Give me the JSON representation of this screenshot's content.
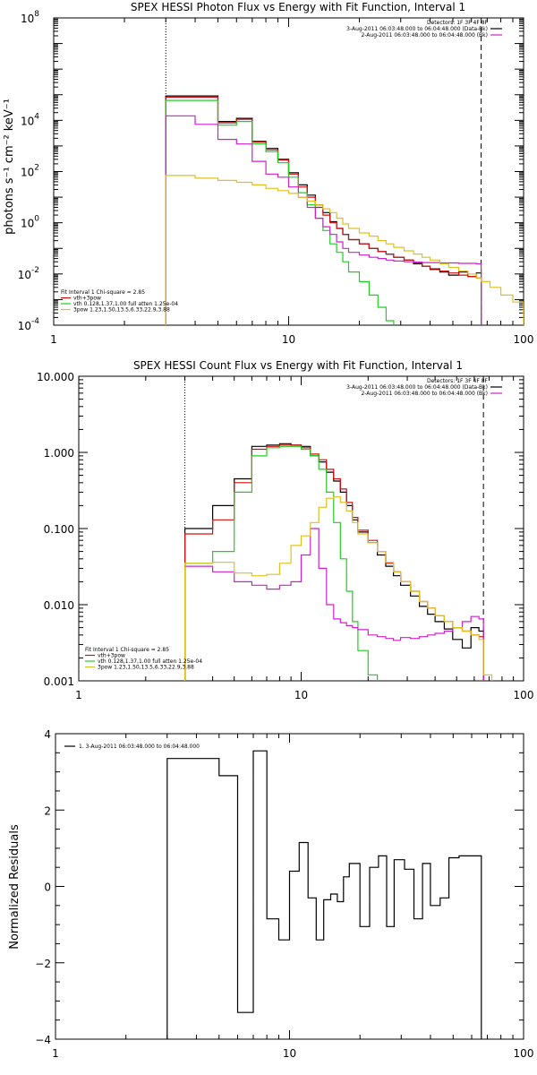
{
  "chart_data": [
    {
      "type": "line",
      "title": "SPEX HESSI Photon Flux vs Energy with Fit Function, Interval 1",
      "ylabel": "photons s⁻¹ cm⁻² keV⁻¹",
      "xlabel": "",
      "xscale": "log",
      "yscale": "log",
      "xlim": [
        1,
        100
      ],
      "ylim": [
        0.0001,
        100000000
      ],
      "xticks": [
        {
          "v": 1,
          "label": "1"
        },
        {
          "v": 10,
          "label": "10"
        },
        {
          "v": 100,
          "label": "100"
        }
      ],
      "yticks": [
        {
          "v": 0.0001,
          "label": "10",
          "exp": "-4"
        },
        {
          "v": 0.01,
          "label": "10",
          "exp": "-2"
        },
        {
          "v": 1,
          "label": "10",
          "exp": "0"
        },
        {
          "v": 100,
          "label": "10",
          "exp": "2"
        },
        {
          "v": 10000,
          "label": "10",
          "exp": "4"
        },
        {
          "v": 100000000,
          "label": "10",
          "exp": "8"
        }
      ],
      "vlines": [
        {
          "x": 3,
          "style": "dotted"
        },
        {
          "x": 66,
          "style": "dashed"
        }
      ],
      "legend_top_right": [
        {
          "text": "Detectors: 1F 3F 4F 8F",
          "color": ""
        },
        {
          "text": "3-Aug-2011 06:03:48.000 to 06:04:48.000 (Data-Bk)",
          "color": "#000000"
        },
        {
          "text": "2-Aug-2011 06:03:48.000 to 06:04:48.000 (Bk)",
          "color": "#cc22cc"
        }
      ],
      "legend_bottom_left": [
        {
          "text": "Fit Interval 1   Chi-square = 2.85",
          "color": ""
        },
        {
          "text": "vth+3pow",
          "color": "#d01010"
        },
        {
          "text": "vth 0.128,1.37,1.00  full atten 1.25e-04",
          "color": "#22cc22"
        },
        {
          "text": "3pow 1.23,1.50,13.5,6.33,22.9,3.88",
          "color": "#e0c020"
        }
      ],
      "series": [
        {
          "color": "#000000",
          "edges": [
            3,
            4,
            5,
            6,
            7,
            8,
            9,
            10,
            11,
            12,
            13,
            14,
            15,
            16,
            17,
            18,
            20,
            22,
            24,
            26,
            28,
            31,
            34,
            37,
            40,
            44,
            48,
            53,
            58,
            63,
            66
          ],
          "values": [
            90000,
            90000,
            9000,
            12000,
            1500,
            800,
            300,
            90,
            30,
            12,
            5,
            2.5,
            1.1,
            0.6,
            0.35,
            0.22,
            0.15,
            0.1,
            0.075,
            0.06,
            0.045,
            0.035,
            0.025,
            0.02,
            0.015,
            0.012,
            0.009,
            0.012,
            0.008,
            0.011
          ]
        },
        {
          "color": "#d01010",
          "edges": [
            3,
            4,
            5,
            6,
            7,
            8,
            9,
            10,
            11,
            12,
            13,
            14,
            15,
            16,
            17,
            18,
            20,
            22,
            24,
            26,
            28,
            31,
            34,
            37,
            40,
            44,
            48,
            53,
            58,
            63,
            66
          ],
          "values": [
            80000,
            80000,
            8000,
            11000,
            1400,
            700,
            280,
            80,
            25,
            10,
            4,
            2,
            1,
            0.6,
            0.35,
            0.22,
            0.15,
            0.1,
            0.075,
            0.06,
            0.045,
            0.035,
            0.027,
            0.02,
            0.016,
            0.013,
            0.011,
            0.009,
            0.008,
            0.007
          ]
        },
        {
          "color": "#22cc22",
          "edges": [
            3,
            4,
            5,
            6,
            7,
            8,
            9,
            10,
            11,
            12,
            13,
            14,
            15,
            16,
            17,
            18,
            20,
            22,
            24,
            26,
            28
          ],
          "values": [
            60000,
            60000,
            6500,
            9000,
            1200,
            600,
            220,
            60,
            15,
            5,
            1.5,
            0.5,
            0.15,
            0.07,
            0.03,
            0.012,
            0.005,
            0.0015,
            0.0005,
            0.00015
          ]
        },
        {
          "color": "#cc22cc",
          "edges": [
            3,
            4,
            5,
            6,
            7,
            8,
            9,
            10,
            11,
            12,
            13,
            14,
            15,
            16,
            17,
            18,
            20,
            22,
            24,
            26,
            28,
            31,
            34,
            37,
            40,
            44,
            48,
            53,
            58,
            63,
            66
          ],
          "values": [
            15000,
            7000,
            1800,
            1200,
            250,
            80,
            60,
            25,
            10,
            4,
            1.5,
            0.7,
            0.35,
            0.18,
            0.1,
            0.07,
            0.055,
            0.045,
            0.04,
            0.035,
            0.032,
            0.03,
            0.029,
            0.028,
            0.028,
            0.027,
            0.027,
            0.026,
            0.026,
            0.025
          ]
        },
        {
          "color": "#e0c020",
          "edges": [
            3,
            4,
            5,
            6,
            7,
            8,
            9,
            10,
            11,
            12,
            13,
            14,
            15,
            16,
            17,
            18,
            20,
            22,
            24,
            26,
            28,
            31,
            34,
            37,
            40,
            44,
            48,
            53,
            58,
            63,
            66,
            72,
            80,
            90,
            100
          ],
          "values": [
            70,
            55,
            45,
            38,
            30,
            22,
            18,
            14,
            10,
            7,
            5,
            3.5,
            2.5,
            1.5,
            0.9,
            0.6,
            0.4,
            0.3,
            0.2,
            0.15,
            0.11,
            0.08,
            0.06,
            0.045,
            0.035,
            0.025,
            0.018,
            0.013,
            0.01,
            0.007,
            0.005,
            0.003,
            0.0015,
            0.0008
          ]
        }
      ]
    },
    {
      "type": "line",
      "title": "SPEX HESSI Count Flux vs Energy with Fit Function, Interval 1",
      "ylabel": "",
      "xlabel": "",
      "xscale": "log",
      "yscale": "log",
      "xlim": [
        1,
        100
      ],
      "ylim": [
        0.001,
        10
      ],
      "xticks": [
        {
          "v": 1,
          "label": "1"
        },
        {
          "v": 10,
          "label": "10"
        },
        {
          "v": 100,
          "label": "100"
        }
      ],
      "yticks": [
        {
          "v": 0.001,
          "label": "0.001"
        },
        {
          "v": 0.01,
          "label": "0.010"
        },
        {
          "v": 0.1,
          "label": "0.100"
        },
        {
          "v": 1,
          "label": "1.000"
        },
        {
          "v": 10,
          "label": "10.000"
        }
      ],
      "vlines": [
        {
          "x": 3,
          "style": "dotted"
        },
        {
          "x": 66,
          "style": "dashed"
        }
      ],
      "legend_top_right": [
        {
          "text": "Detectors: 1F 3F 4F 8F",
          "color": ""
        },
        {
          "text": "3-Aug-2011 06:03:48.000 to 06:04:48.000 (Data-Bk)",
          "color": "#000000"
        },
        {
          "text": "2-Aug-2011 06:03:48.000 to 06:04:48.000 (Bk)",
          "color": "#cc22cc"
        }
      ],
      "legend_bottom_left": [
        {
          "text": "Fit Interval 1   Chi-square = 2.85",
          "color": ""
        },
        {
          "text": "vth+3pow",
          "color": "#d01010"
        },
        {
          "text": "vth 0.128,1.37,1.00  full atten 1.25e-04",
          "color": "#22cc22"
        },
        {
          "text": "3pow 1.23,1.50,13.5,6.33,22.9,3.88",
          "color": "#e0c020"
        }
      ],
      "series": [
        {
          "color": "#000000",
          "edges": [
            3,
            4,
            5,
            6,
            7,
            8,
            9,
            10,
            11,
            12,
            13,
            14,
            15,
            16,
            17,
            18,
            20,
            22,
            24,
            26,
            28,
            31,
            34,
            37,
            40,
            44,
            48,
            53,
            58,
            63,
            66
          ],
          "values": [
            0.1,
            0.2,
            0.45,
            1.2,
            1.25,
            1.3,
            1.25,
            1.2,
            0.9,
            0.75,
            0.55,
            0.42,
            0.3,
            0.2,
            0.13,
            0.09,
            0.065,
            0.045,
            0.032,
            0.024,
            0.018,
            0.013,
            0.0095,
            0.0075,
            0.006,
            0.0048,
            0.0035,
            0.0027,
            0.005,
            0.0045
          ]
        },
        {
          "color": "#d01010",
          "edges": [
            3,
            4,
            5,
            6,
            7,
            8,
            9,
            10,
            11,
            12,
            13,
            14,
            15,
            16,
            17,
            18,
            20,
            22,
            24,
            26,
            28,
            31,
            34,
            37,
            40,
            44,
            48,
            53,
            58,
            63,
            66
          ],
          "values": [
            0.085,
            0.13,
            0.4,
            1.1,
            1.2,
            1.25,
            1.25,
            1.15,
            0.95,
            0.8,
            0.6,
            0.45,
            0.33,
            0.22,
            0.14,
            0.095,
            0.07,
            0.05,
            0.035,
            0.027,
            0.02,
            0.015,
            0.011,
            0.009,
            0.0072,
            0.006,
            0.005,
            0.0045,
            0.004,
            0.0038
          ]
        },
        {
          "color": "#22cc22",
          "edges": [
            3,
            4,
            5,
            6,
            7,
            8,
            9,
            10,
            11,
            12,
            13,
            14,
            15,
            16,
            17,
            18,
            20,
            22
          ],
          "values": [
            0.035,
            0.05,
            0.3,
            0.9,
            1.15,
            1.2,
            1.2,
            1.1,
            0.9,
            0.6,
            0.3,
            0.12,
            0.04,
            0.015,
            0.006,
            0.0025,
            0.0012
          ]
        },
        {
          "color": "#cc22cc",
          "edges": [
            3,
            4,
            5,
            6,
            7,
            8,
            9,
            10,
            11,
            12,
            13,
            14,
            15,
            16,
            17,
            18,
            20,
            22,
            24,
            26,
            28,
            31,
            34,
            37,
            40,
            44,
            48,
            53,
            58,
            63,
            66
          ],
          "values": [
            0.032,
            0.027,
            0.02,
            0.018,
            0.016,
            0.018,
            0.02,
            0.045,
            0.1,
            0.03,
            0.01,
            0.0065,
            0.0058,
            0.0053,
            0.005,
            0.0047,
            0.004,
            0.0038,
            0.0036,
            0.0034,
            0.0037,
            0.0036,
            0.0038,
            0.004,
            0.0042,
            0.0045,
            0.005,
            0.006,
            0.007,
            0.0065
          ]
        },
        {
          "color": "#e0c020",
          "edges": [
            3,
            4,
            5,
            6,
            7,
            8,
            9,
            10,
            11,
            12,
            13,
            14,
            15,
            16,
            17,
            18,
            20,
            22,
            24,
            26,
            28,
            31,
            34,
            37,
            40,
            44,
            48,
            53,
            58,
            63,
            66,
            72
          ],
          "values": [
            0.035,
            0.036,
            0.026,
            0.024,
            0.025,
            0.035,
            0.06,
            0.08,
            0.12,
            0.19,
            0.25,
            0.26,
            0.22,
            0.17,
            0.12,
            0.085,
            0.065,
            0.05,
            0.036,
            0.027,
            0.02,
            0.015,
            0.011,
            0.009,
            0.0072,
            0.006,
            0.005,
            0.0045,
            0.004,
            0.0035,
            0.0012
          ]
        }
      ]
    },
    {
      "type": "line",
      "title": "",
      "ylabel": "Normalized Residuals",
      "xlabel": "",
      "xscale": "log",
      "yscale": "linear",
      "xlim": [
        1,
        100
      ],
      "ylim": [
        -4,
        4
      ],
      "xticks": [
        {
          "v": 1,
          "label": "1"
        },
        {
          "v": 10,
          "label": "10"
        },
        {
          "v": 100,
          "label": "100"
        }
      ],
      "yticks": [
        {
          "v": -4,
          "label": "−4"
        },
        {
          "v": -2,
          "label": "−2"
        },
        {
          "v": 0,
          "label": "0"
        },
        {
          "v": 2,
          "label": "2"
        },
        {
          "v": 4,
          "label": "4"
        }
      ],
      "legend_top_left": [
        {
          "text": "1.  3-Aug-2011 06:03:48.000 to 06:04:48.000",
          "color": "#000000"
        }
      ],
      "series": [
        {
          "color": "#000000",
          "edges": [
            3,
            4,
            5,
            6,
            7,
            8,
            9,
            10,
            11,
            12,
            13,
            14,
            15,
            16,
            17,
            18,
            20,
            22,
            24,
            26,
            28,
            31,
            34,
            37,
            40,
            44,
            48,
            53,
            58,
            63,
            66
          ],
          "values": [
            3.35,
            3.35,
            2.9,
            -3.3,
            3.55,
            -0.85,
            -1.4,
            0.4,
            1.15,
            -0.3,
            -1.4,
            -0.35,
            -0.2,
            -0.4,
            0.25,
            0.6,
            -1.05,
            0.5,
            0.8,
            -1.05,
            0.7,
            0.45,
            -0.85,
            0.6,
            -0.5,
            -0.3,
            0.75,
            0.8,
            0.8,
            0.8
          ]
        }
      ]
    }
  ]
}
